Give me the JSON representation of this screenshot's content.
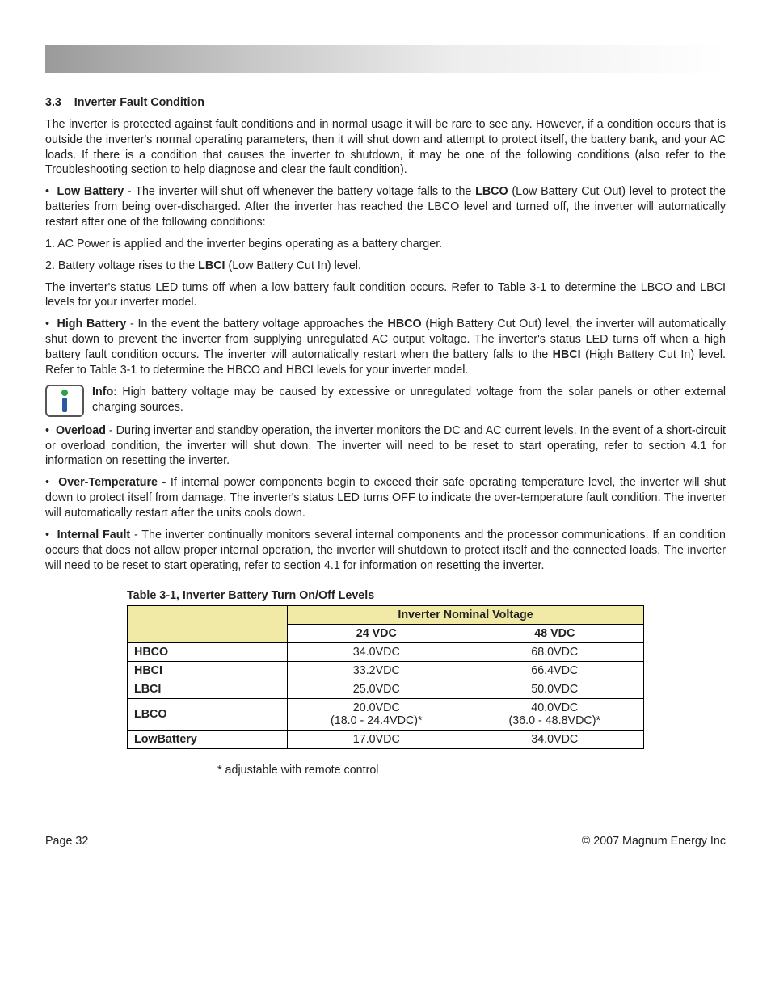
{
  "header": {
    "section_number": "3.3",
    "section_title": "Inverter Fault Condition"
  },
  "intro": "The inverter is protected against fault conditions and in normal usage it will be rare to see any. However, if a condition occurs that is outside the inverter's normal operating parameters, then it will shut down and attempt to protect itself, the battery bank, and your AC loads.  If there is a condition that causes the inverter to shutdown, it may be one of the following conditions (also refer to the Troubleshooting section to help diagnose and clear the fault condition).",
  "bullets": {
    "low_batt": {
      "term": "Low Battery",
      "pre": " - The inverter will shut off whenever the battery voltage falls to the ",
      "acr1": "LBCO",
      "post1": " (Low Battery Cut Out) level to protect the batteries from being over-discharged.  After the inverter has reached the LBCO level and turned off, the inverter will automatically restart after one of the following conditions:"
    },
    "low_batt_sub1": "1.  AC Power is applied and the inverter begins operating as a battery charger.",
    "low_batt_sub2_pre": "2.  Battery voltage rises to the ",
    "low_batt_sub2_acr": "LBCI",
    "low_batt_sub2_post": " (Low Battery Cut In) level.",
    "low_batt_after": "The inverter's status LED turns off when a low battery fault condition occurs. Refer to Table 3-1 to determine the LBCO and LBCI levels for your inverter model.",
    "high_batt": {
      "term": "High Battery",
      "pre": " - In the event the battery voltage approaches the ",
      "acr1": "HBCO",
      "mid": " (High Battery Cut Out) level, the inverter will automatically shut down to prevent the inverter from supplying unregulated AC output voltage. The inverter's status LED turns off when a high battery fault condition occurs. The inverter will automatically restart when the battery falls to the ",
      "acr2": "HBCI",
      "post": " (High Battery Cut In) level.  Refer to Table 3-1 to determine the HBCO and HBCI levels for your inverter model."
    },
    "info_label": "Info:",
    "info_text": " High battery voltage may be caused by excessive or unregulated voltage from the solar panels or other external charging sources.",
    "overload": {
      "term": "Overload",
      "text": " - During inverter and standby operation, the inverter monitors the DC and AC current levels.  In the event of a short-circuit or overload condition, the inverter will shut down. The inverter will need to be reset to start operating, refer to section 4.1 for information on resetting the inverter."
    },
    "overtemp": {
      "term": "Over-Temperature - ",
      "text": "If internal power components begin to exceed their safe operating temperature level, the inverter will shut down to protect itself from damage.  The inverter's status LED turns OFF to indicate the over-temperature fault condition. The inverter will automatically restart after the units cools down."
    },
    "internal": {
      "term": "Internal Fault",
      "text": " - The inverter continually monitors several internal components and the processor communications.  If an condition occurs that does not allow proper internal operation, the inverter will shutdown to protect itself and the connected loads. The inverter will need to be reset to start operating, refer to section 4.1 for information on resetting the inverter."
    }
  },
  "table": {
    "caption": "Table 3-1, Inverter Battery Turn On/Off Levels",
    "columns": {
      "rowhead": "",
      "group": "Inverter Nominal Voltage",
      "c1": "24 VDC",
      "c2": "48 VDC"
    },
    "rows": [
      {
        "label": "HBCO",
        "c1": "34.0VDC",
        "c2": "68.0VDC"
      },
      {
        "label": "HBCI",
        "c1": "33.2VDC",
        "c2": "66.4VDC"
      },
      {
        "label": "LBCI",
        "c1": "25.0VDC",
        "c2": "50.0VDC"
      },
      {
        "label": "LBCO",
        "c1": "20.0VDC\n(18.0 - 24.4VDC)*",
        "c2": "40.0VDC\n(36.0 - 48.8VDC)*"
      },
      {
        "label": "LowBattery",
        "c1": "17.0VDC",
        "c2": "34.0VDC"
      }
    ],
    "footnote": "* adjustable with remote control"
  },
  "footer": {
    "left": "Page 32",
    "right": "© 2007 Magnum Energy Inc"
  },
  "style": {
    "font_family": "Verdana, Geneva, sans-serif",
    "body_fontsize_pt": 11,
    "header_bg_gradient": [
      "#9a9a9a",
      "#ffffff"
    ],
    "table_header_bg": "#f1eaa7",
    "border_color": "#000000",
    "text_color": "#222222"
  }
}
